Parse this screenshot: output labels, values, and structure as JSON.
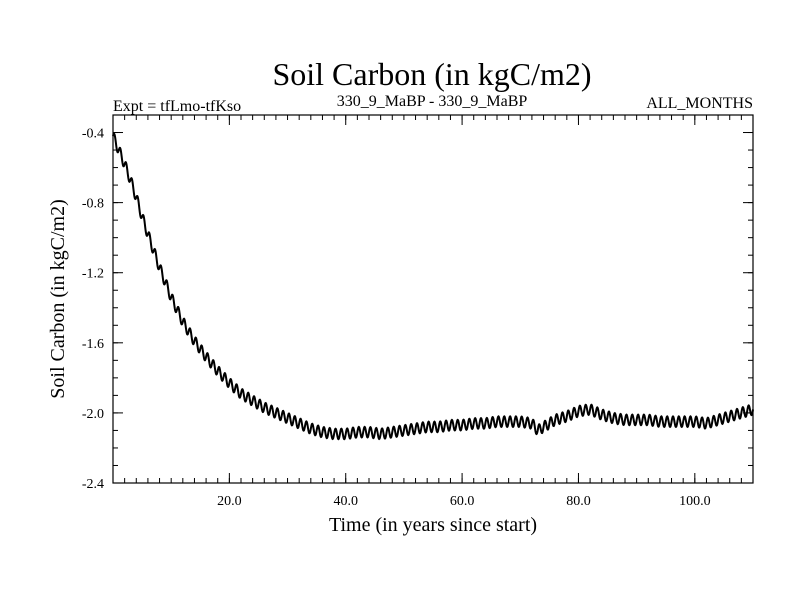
{
  "chart_data": {
    "type": "line",
    "title": "Soil Carbon (in kgC/m2)",
    "subtitle_left": "Expt = tfLmo-tfKso",
    "subtitle_center": "330_9_MaBP - 330_9_MaBP",
    "subtitle_right": "ALL_MONTHS",
    "xlabel": "Time (in years since start)",
    "ylabel": "Soil Carbon (in kgC/m2)",
    "xlim": [
      0,
      110
    ],
    "ylim": [
      -2.4,
      -0.3
    ],
    "xticks": [
      20,
      40,
      60,
      80,
      100
    ],
    "xtick_labels": [
      "20.0",
      "40.0",
      "60.0",
      "80.0",
      "100.0"
    ],
    "yticks": [
      -2.4,
      -2.0,
      -1.6,
      -1.2,
      -0.8,
      -0.4
    ],
    "ytick_labels": [
      "-2.4",
      "-2.0",
      "-1.6",
      "-1.2",
      "-0.8",
      "-0.4"
    ],
    "series": [
      {
        "name": "Soil Carbon",
        "seasonal_amplitude": 0.03,
        "x": [
          0,
          1,
          2,
          3,
          4,
          5,
          6,
          8,
          10,
          12,
          14,
          16,
          18,
          20,
          22,
          24,
          26,
          28,
          30,
          32,
          34,
          36,
          38,
          40,
          42,
          44,
          46,
          48,
          50,
          52,
          54,
          56,
          58,
          60,
          62,
          64,
          66,
          68,
          70,
          72,
          73,
          74,
          76,
          78,
          80,
          82,
          84,
          86,
          88,
          90,
          92,
          94,
          96,
          98,
          100,
          102,
          104,
          106,
          108,
          110
        ],
        "values": [
          -0.42,
          -0.5,
          -0.58,
          -0.67,
          -0.77,
          -0.88,
          -0.98,
          -1.17,
          -1.34,
          -1.48,
          -1.59,
          -1.68,
          -1.76,
          -1.83,
          -1.89,
          -1.93,
          -1.97,
          -2.0,
          -2.03,
          -2.06,
          -2.09,
          -2.11,
          -2.12,
          -2.12,
          -2.11,
          -2.11,
          -2.12,
          -2.11,
          -2.1,
          -2.09,
          -2.08,
          -2.08,
          -2.07,
          -2.07,
          -2.06,
          -2.06,
          -2.05,
          -2.05,
          -2.05,
          -2.06,
          -2.1,
          -2.08,
          -2.04,
          -2.02,
          -1.99,
          -1.98,
          -2.01,
          -2.03,
          -2.04,
          -2.04,
          -2.04,
          -2.05,
          -2.05,
          -2.05,
          -2.05,
          -2.06,
          -2.04,
          -2.02,
          -2.0,
          -1.98
        ]
      }
    ]
  }
}
